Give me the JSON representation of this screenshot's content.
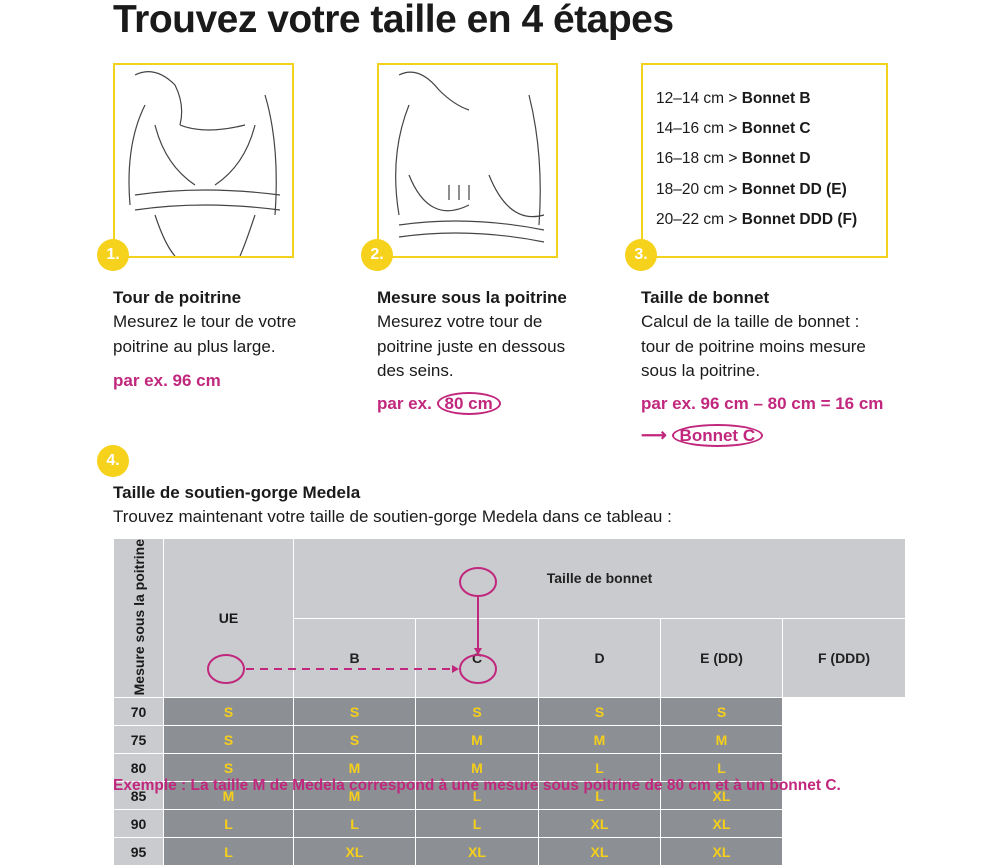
{
  "title": "Trouvez votre taille en 4 étapes",
  "steps": [
    {
      "num": "1.",
      "heading": "Tour de poitrine",
      "lines": [
        "Mesurez le tour de votre",
        "poitrine au plus large."
      ],
      "example": "par ex. 96 cm"
    },
    {
      "num": "2.",
      "heading": "Mesure sous la poitrine",
      "lines": [
        "Mesurez votre tour de",
        "poitrine juste en dessous",
        "des seins."
      ],
      "example_prefix": "par ex.",
      "example_value": "80 cm"
    },
    {
      "num": "3.",
      "heading": "Taille de bonnet",
      "lines": [
        "Calcul de la taille de bonnet :",
        "tour de poitrine moins mesure",
        "sous la poitrine."
      ],
      "example": "par ex. 96 cm – 80 cm = 16 cm",
      "result": "Bonnet C"
    },
    {
      "num": "4.",
      "heading": "Taille de soutien-gorge Medela",
      "lines": [
        "Trouvez maintenant votre taille de soutien-gorge Medela dans ce tableau :"
      ]
    }
  ],
  "cup_ranges": [
    {
      "range": "12–14 cm >",
      "cup": "Bonnet B"
    },
    {
      "range": "14–16 cm >",
      "cup": "Bonnet C"
    },
    {
      "range": "16–18 cm >",
      "cup": "Bonnet D"
    },
    {
      "range": "18–20 cm >",
      "cup": "Bonnet DD (E)"
    },
    {
      "range": "20–22 cm >",
      "cup": "Bonnet DDD (F)"
    }
  ],
  "table": {
    "row_axis_label": "Mesure sous la poitrine",
    "ue_label": "UE",
    "col_group_label": "Taille de bonnet",
    "columns": [
      "B",
      "C",
      "D",
      "E (DD)",
      "F (DDD)"
    ],
    "rows": [
      {
        "ue": "70",
        "sizes": [
          "S",
          "S",
          "S",
          "S",
          "S"
        ]
      },
      {
        "ue": "75",
        "sizes": [
          "S",
          "S",
          "M",
          "M",
          "M"
        ]
      },
      {
        "ue": "80",
        "sizes": [
          "S",
          "M",
          "M",
          "L",
          "L"
        ]
      },
      {
        "ue": "85",
        "sizes": [
          "M",
          "M",
          "L",
          "L",
          "XL"
        ]
      },
      {
        "ue": "90",
        "sizes": [
          "L",
          "L",
          "L",
          "XL",
          "XL"
        ]
      },
      {
        "ue": "95",
        "sizes": [
          "L",
          "XL",
          "XL",
          "XL",
          "XL"
        ]
      }
    ],
    "highlight": {
      "row": "80",
      "column": "C",
      "size": "M"
    }
  },
  "footnote": "Exemple : La taille M de Medela correspond à une mesure sous poitrine de 80 cm et à un bonnet C.",
  "colors": {
    "yellow": "#f7d21c",
    "magenta": "#c0277d",
    "header_grey": "#c9cbce",
    "cell_grey": "#8c9095"
  }
}
